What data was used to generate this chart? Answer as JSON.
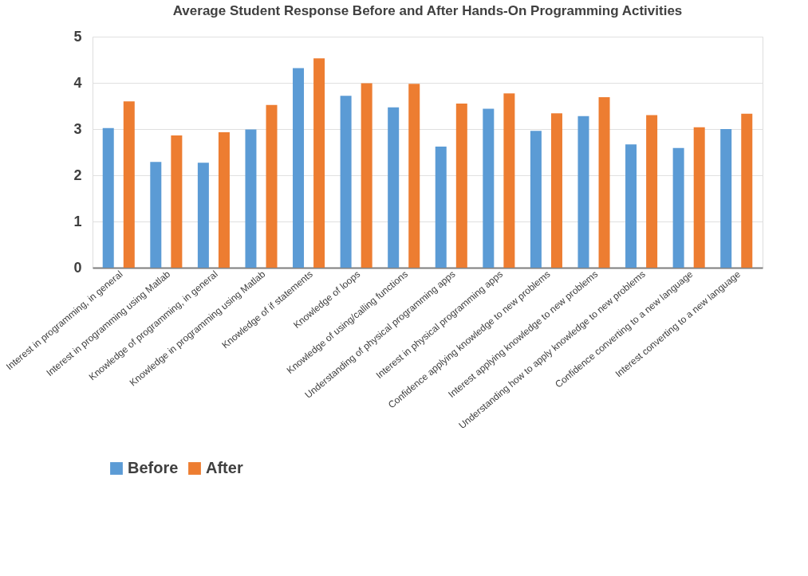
{
  "chart_data": {
    "type": "bar",
    "title": "Average Student Response Before and After Hands-On Programming Activities",
    "categories": [
      "Interest in programming, in general",
      "Interest in programming using Matlab",
      "Knowledge of programming, in general",
      "Knowledge in programming using Matlab",
      "Knowledge of if statements",
      "Knowledge of loops",
      "Knowledge of using/calling functions",
      "Understanding of physical programming apps",
      "Interest in physical programming apps",
      "Confidence applying knowledge to new problems",
      "Interest applying knowledge to new problems",
      "Understanding how to apply knowledge to new problems",
      "Confidence converting to a new language",
      "Interest converting to a new language"
    ],
    "series": [
      {
        "name": "Before",
        "color": "#5b9bd5",
        "values": [
          3.02,
          2.29,
          2.27,
          2.99,
          4.32,
          3.72,
          3.47,
          2.62,
          3.44,
          2.96,
          3.28,
          2.67,
          2.59,
          3.0
        ]
      },
      {
        "name": "After",
        "color": "#ed7d31",
        "values": [
          3.6,
          2.86,
          2.93,
          3.52,
          4.53,
          3.99,
          3.98,
          3.55,
          3.77,
          3.34,
          3.69,
          3.3,
          3.04,
          3.33
        ]
      }
    ],
    "ylim": [
      0,
      5
    ],
    "yticks": [
      0,
      1,
      2,
      3,
      4,
      5
    ],
    "grid": "y",
    "legend": "bottom"
  }
}
